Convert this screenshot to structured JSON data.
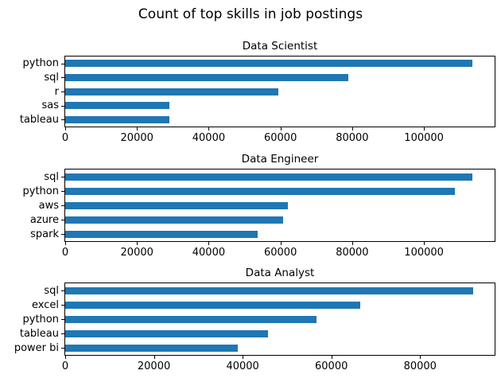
{
  "figure": {
    "title": "Count of top skills in job postings",
    "bar_color": "#1f77b4",
    "background": "#ffffff"
  },
  "chart_data": [
    {
      "type": "bar",
      "orientation": "horizontal",
      "title": "Data Scientist",
      "categories": [
        "python",
        "sql",
        "r",
        "sas",
        "tableau"
      ],
      "values": [
        113500,
        78900,
        59300,
        29100,
        29000
      ],
      "xlim": [
        0,
        119700
      ],
      "xticks": [
        0,
        20000,
        40000,
        60000,
        80000,
        100000
      ],
      "grid": false,
      "legend": null
    },
    {
      "type": "bar",
      "orientation": "horizontal",
      "title": "Data Engineer",
      "categories": [
        "sql",
        "python",
        "aws",
        "azure",
        "spark"
      ],
      "values": [
        113500,
        108700,
        62100,
        60800,
        53700
      ],
      "xlim": [
        0,
        119700
      ],
      "xticks": [
        0,
        20000,
        40000,
        60000,
        80000,
        100000
      ],
      "grid": false,
      "legend": null
    },
    {
      "type": "bar",
      "orientation": "horizontal",
      "title": "Data Analyst",
      "categories": [
        "sql",
        "excel",
        "python",
        "tableau",
        "power bi"
      ],
      "values": [
        92000,
        66500,
        56700,
        45800,
        38900
      ],
      "xlim": [
        0,
        96800
      ],
      "xticks": [
        0,
        20000,
        40000,
        60000,
        80000
      ],
      "grid": false,
      "legend": null
    }
  ]
}
